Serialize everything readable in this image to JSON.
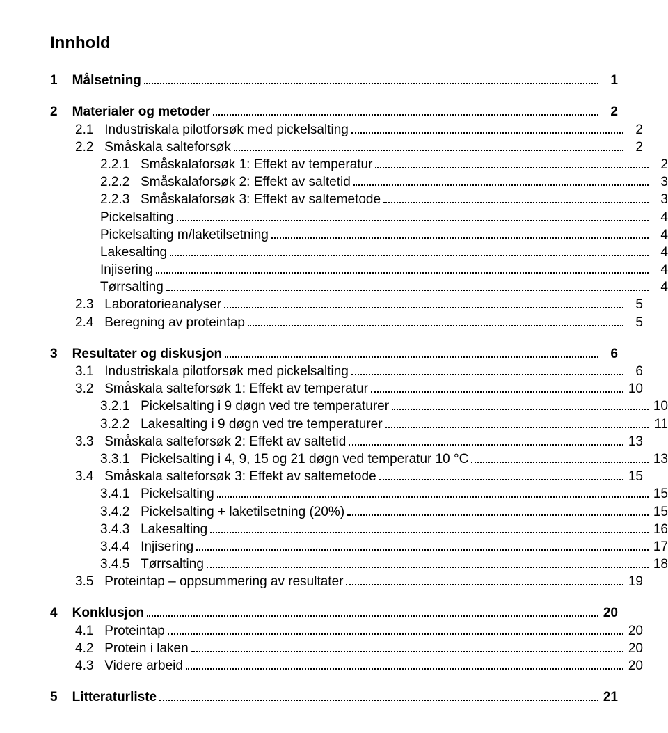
{
  "title": "Innhold",
  "colors": {
    "text": "#000000",
    "background": "#ffffff",
    "dots": "#000000"
  },
  "font": {
    "title_size": 24,
    "body_size": 19,
    "family": "Arial"
  },
  "toc": [
    {
      "level": 1,
      "num": "1",
      "text": "Målsetning",
      "page": "1",
      "bold": true
    },
    {
      "level": 1,
      "num": "2",
      "text": "Materialer og metoder",
      "page": "2",
      "bold": true
    },
    {
      "level": 2,
      "num": "2.1",
      "text": "Industriskala pilotforsøk med pickelsalting",
      "page": "2",
      "bold": false
    },
    {
      "level": 2,
      "num": "2.2",
      "text": "Småskala salteforsøk",
      "page": "2",
      "bold": false
    },
    {
      "level": 3,
      "num": "2.2.1",
      "text": "Småskalaforsøk 1: Effekt av temperatur",
      "page": "2",
      "bold": false
    },
    {
      "level": 3,
      "num": "2.2.2",
      "text": "Småskalaforsøk 2: Effekt av saltetid",
      "page": "3",
      "bold": false
    },
    {
      "level": 3,
      "num": "2.2.3",
      "text": "Småskalaforsøk 3: Effekt av saltemetode",
      "page": "3",
      "bold": false
    },
    {
      "level": 4,
      "num": "",
      "text": "Pickelsalting",
      "page": "4",
      "bold": false
    },
    {
      "level": 4,
      "num": "",
      "text": "Pickelsalting m/laketilsetning",
      "page": "4",
      "bold": false
    },
    {
      "level": 4,
      "num": "",
      "text": "Lakesalting",
      "page": "4",
      "bold": false
    },
    {
      "level": 4,
      "num": "",
      "text": "Injisering",
      "page": "4",
      "bold": false
    },
    {
      "level": 4,
      "num": "",
      "text": "Tørrsalting",
      "page": "4",
      "bold": false
    },
    {
      "level": 2,
      "num": "2.3",
      "text": "Laboratorieanalyser",
      "page": "5",
      "bold": false
    },
    {
      "level": 2,
      "num": "2.4",
      "text": "Beregning av proteintap",
      "page": "5",
      "bold": false
    },
    {
      "level": 1,
      "num": "3",
      "text": "Resultater og diskusjon",
      "page": "6",
      "bold": true
    },
    {
      "level": 2,
      "num": "3.1",
      "text": "Industriskala pilotforsøk med pickelsalting",
      "page": "6",
      "bold": false
    },
    {
      "level": 2,
      "num": "3.2",
      "text": "Småskala salteforsøk 1: Effekt av temperatur",
      "page": "10",
      "bold": false
    },
    {
      "level": 3,
      "num": "3.2.1",
      "text": "Pickelsalting i 9 døgn ved tre temperaturer",
      "page": "10",
      "bold": false
    },
    {
      "level": 3,
      "num": "3.2.2",
      "text": "Lakesalting i 9 døgn ved tre temperaturer",
      "page": "11",
      "bold": false
    },
    {
      "level": 2,
      "num": "3.3",
      "text": "Småskala salteforsøk 2: Effekt av saltetid",
      "page": "13",
      "bold": false
    },
    {
      "level": 3,
      "num": "3.3.1",
      "text": "Pickelsalting i 4, 9, 15 og 21 døgn ved temperatur 10 °C",
      "page": "13",
      "bold": false
    },
    {
      "level": 2,
      "num": "3.4",
      "text": "Småskala salteforsøk 3: Effekt av saltemetode",
      "page": "15",
      "bold": false
    },
    {
      "level": 3,
      "num": "3.4.1",
      "text": "Pickelsalting",
      "page": "15",
      "bold": false
    },
    {
      "level": 3,
      "num": "3.4.2",
      "text": "Pickelsalting + laketilsetning (20%)",
      "page": "15",
      "bold": false
    },
    {
      "level": 3,
      "num": "3.4.3",
      "text": "Lakesalting",
      "page": "16",
      "bold": false
    },
    {
      "level": 3,
      "num": "3.4.4",
      "text": "Injisering",
      "page": "17",
      "bold": false
    },
    {
      "level": 3,
      "num": "3.4.5",
      "text": "Tørrsalting",
      "page": "18",
      "bold": false
    },
    {
      "level": 2,
      "num": "3.5",
      "text": "Proteintap – oppsummering av resultater",
      "page": "19",
      "bold": false
    },
    {
      "level": 1,
      "num": "4",
      "text": "Konklusjon",
      "page": "20",
      "bold": true
    },
    {
      "level": 2,
      "num": "4.1",
      "text": "Proteintap",
      "page": "20",
      "bold": false
    },
    {
      "level": 2,
      "num": "4.2",
      "text": "Protein i laken",
      "page": "20",
      "bold": false
    },
    {
      "level": 2,
      "num": "4.3",
      "text": "Videre arbeid",
      "page": "20",
      "bold": false
    },
    {
      "level": 1,
      "num": "5",
      "text": "Litteraturliste",
      "page": "21",
      "bold": true
    }
  ]
}
